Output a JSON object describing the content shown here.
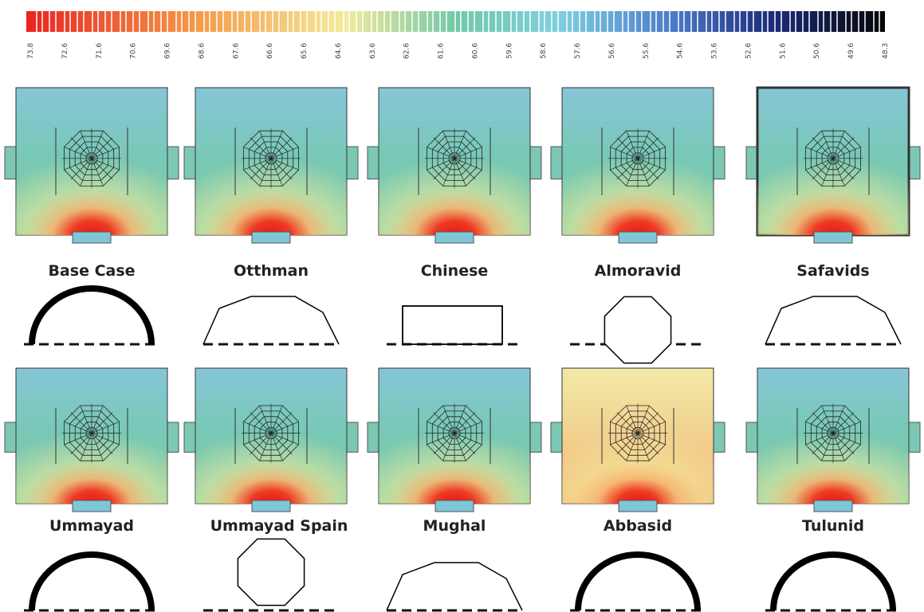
{
  "colorbar": {
    "ticks": [
      "73.8",
      "72.6",
      "71.6",
      "70.6",
      "69.6",
      "68.6",
      "67.6",
      "66.6",
      "65.6",
      "64.6",
      "63.6",
      "62.6",
      "61.6",
      "60.6",
      "59.6",
      "58.6",
      "57.6",
      "56.6",
      "55.6",
      "54.6",
      "53.6",
      "52.6",
      "51.6",
      "50.6",
      "49.6",
      "48.3"
    ]
  },
  "panels": [
    {
      "name": "Base Case"
    },
    {
      "name": "Otthman"
    },
    {
      "name": "Chinese"
    },
    {
      "name": "Almoravid"
    },
    {
      "name": "Safavids"
    },
    {
      "name": "Ummayad"
    },
    {
      "name": "Ummayad Spain"
    },
    {
      "name": "Mughal"
    },
    {
      "name": "Abbasid"
    },
    {
      "name": "Tulunid"
    }
  ]
}
